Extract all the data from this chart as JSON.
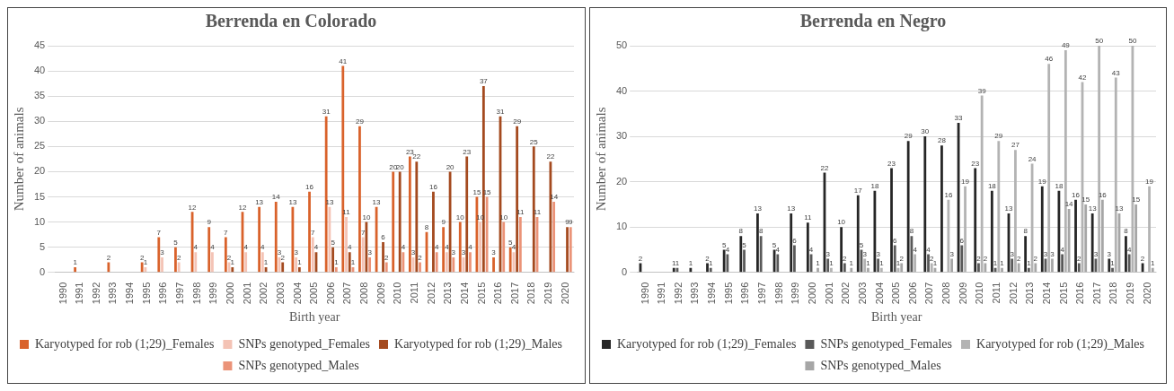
{
  "chart_data": [
    {
      "type": "bar",
      "title": "Berrenda en Colorado",
      "xlabel": "Birth year",
      "ylabel": "Number of animals",
      "categories": [
        "1990",
        "1991",
        "1992",
        "1993",
        "1994",
        "1995",
        "1996",
        "1997",
        "1998",
        "1999",
        "2000",
        "2001",
        "2002",
        "2003",
        "2004",
        "2005",
        "2006",
        "2007",
        "2008",
        "2009",
        "2010",
        "2011",
        "2012",
        "2013",
        "2014",
        "2015",
        "2016",
        "2017",
        "2018",
        "2019",
        "2020"
      ],
      "series": [
        {
          "name": "Karyotyped for rob (1;29)_Females",
          "color": "#d9622b",
          "values": [
            null,
            1,
            null,
            2,
            null,
            2,
            7,
            5,
            12,
            9,
            7,
            12,
            13,
            14,
            13,
            16,
            31,
            41,
            29,
            13,
            20,
            23,
            8,
            9,
            10,
            15,
            3,
            5,
            null,
            null,
            null
          ]
        },
        {
          "name": "SNPs genotyped_Females",
          "color": "#f4c3b5",
          "values": [
            null,
            null,
            null,
            null,
            null,
            1,
            3,
            2,
            4,
            4,
            2,
            4,
            4,
            3,
            3,
            7,
            13,
            11,
            7,
            null,
            null,
            3,
            null,
            4,
            3,
            10,
            null,
            4,
            null,
            null,
            null
          ]
        },
        {
          "name": "Karyotyped for rob (1;29)_Males",
          "color": "#a44a1f",
          "values": [
            null,
            null,
            null,
            null,
            null,
            null,
            null,
            null,
            null,
            null,
            1,
            null,
            1,
            2,
            1,
            4,
            5,
            4,
            10,
            6,
            20,
            22,
            16,
            20,
            23,
            37,
            31,
            29,
            25,
            22,
            9
          ]
        },
        {
          "name": "SNPs genotyped_Males",
          "color": "#eb9378",
          "values": [
            null,
            null,
            null,
            null,
            null,
            null,
            null,
            null,
            null,
            null,
            null,
            null,
            null,
            null,
            null,
            null,
            1,
            1,
            3,
            2,
            4,
            2,
            4,
            3,
            4,
            15,
            10,
            11,
            11,
            14,
            9
          ]
        }
      ],
      "ylim": [
        0,
        45
      ],
      "yticks": [
        0,
        5,
        10,
        15,
        20,
        25,
        30,
        35,
        40,
        45
      ],
      "grid": "y",
      "legend": "bottom",
      "data_labels": true
    },
    {
      "type": "bar",
      "title": "Berrenda en Negro",
      "xlabel": "Birth year",
      "ylabel": "Number of animals",
      "categories": [
        "1990",
        "1991",
        "1992",
        "1993",
        "1994",
        "1995",
        "1996",
        "1997",
        "1998",
        "1999",
        "2000",
        "2001",
        "2002",
        "2003",
        "2004",
        "2005",
        "2006",
        "2007",
        "2008",
        "2009",
        "2010",
        "2011",
        "2012",
        "2013",
        "2014",
        "2015",
        "2016",
        "2017",
        "2018",
        "2019",
        "2020"
      ],
      "series": [
        {
          "name": "Karyotyped for rob (1;29)_Females",
          "color": "#262626",
          "values": [
            2,
            null,
            1,
            1,
            2,
            5,
            8,
            13,
            5,
            13,
            11,
            22,
            10,
            17,
            18,
            23,
            29,
            30,
            28,
            33,
            23,
            18,
            13,
            8,
            19,
            18,
            16,
            13,
            3,
            8,
            2
          ]
        },
        {
          "name": "SNPs genotyped_Females",
          "color": "#595959",
          "values": [
            null,
            null,
            1,
            null,
            1,
            4,
            5,
            8,
            4,
            6,
            4,
            3,
            2,
            5,
            3,
            6,
            8,
            4,
            null,
            6,
            2,
            1,
            3,
            1,
            3,
            4,
            2,
            3,
            1,
            4,
            null
          ]
        },
        {
          "name": "Karyotyped for rob (1;29)_Males",
          "color": "#b3b3b3",
          "values": [
            null,
            null,
            null,
            null,
            null,
            null,
            null,
            null,
            null,
            null,
            null,
            1,
            null,
            3,
            1,
            1,
            4,
            2,
            16,
            19,
            39,
            29,
            27,
            24,
            46,
            49,
            42,
            50,
            43,
            50,
            19
          ]
        },
        {
          "name": "SNPs genotyped_Males",
          "color": "#a6a6a6",
          "values": [
            null,
            null,
            null,
            null,
            null,
            null,
            null,
            null,
            null,
            null,
            1,
            null,
            1,
            1,
            null,
            2,
            null,
            1,
            3,
            null,
            2,
            1,
            2,
            2,
            3,
            14,
            15,
            16,
            13,
            15,
            1
          ]
        }
      ],
      "ylim": [
        0,
        50
      ],
      "yticks": [
        0,
        10,
        20,
        30,
        40,
        50
      ],
      "grid": "y",
      "legend": "bottom",
      "data_labels": true
    }
  ]
}
